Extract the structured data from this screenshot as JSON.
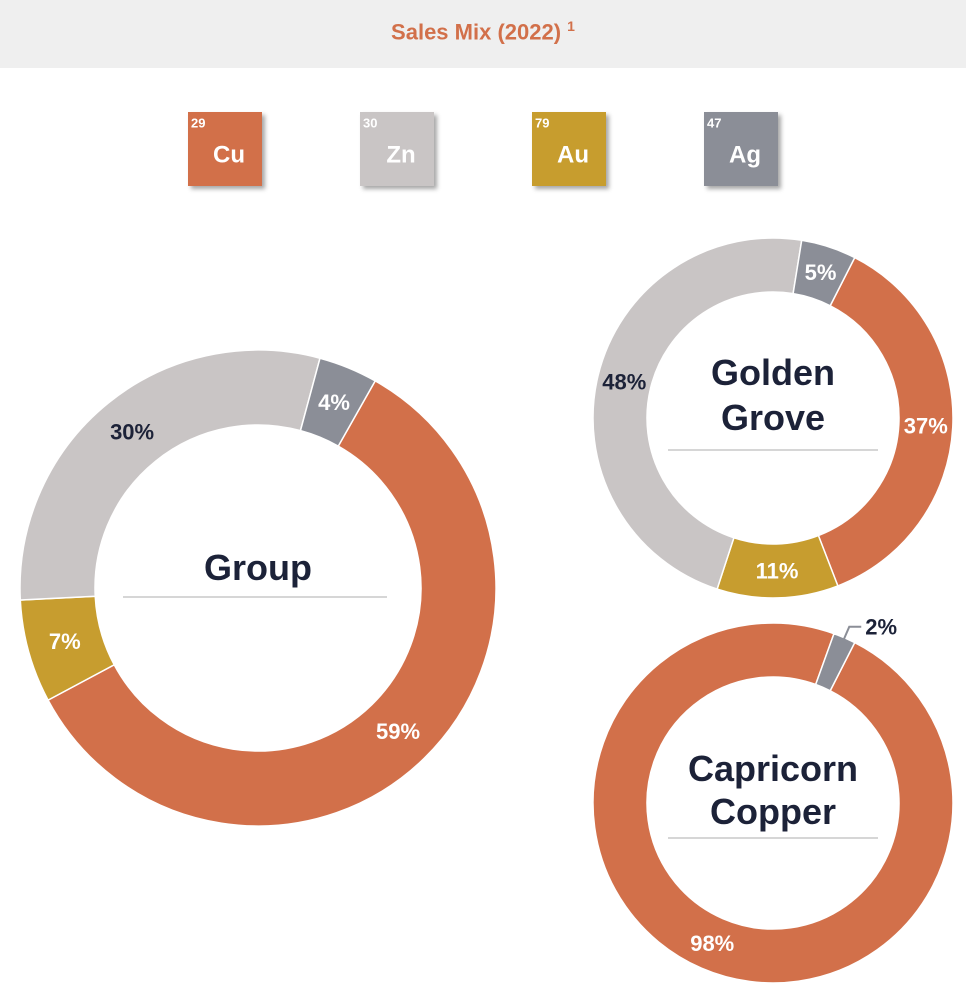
{
  "title": "Sales Mix (2022)",
  "title_note": "1",
  "legend": [
    {
      "symbol": "Cu",
      "number": "29",
      "color": "#d2704a"
    },
    {
      "symbol": "Zn",
      "number": "30",
      "color": "#c9c5c5"
    },
    {
      "symbol": "Au",
      "number": "79",
      "color": "#c79d2f"
    },
    {
      "symbol": "Ag",
      "number": "47",
      "color": "#8b8e97"
    }
  ],
  "chart_data": [
    {
      "type": "pie",
      "donut": true,
      "title": "Group",
      "categories": [
        "Cu",
        "Au",
        "Zn",
        "Ag"
      ],
      "values": [
        59,
        7,
        30,
        4
      ],
      "value_labels": [
        "59%",
        "7%",
        "30%",
        "4%"
      ],
      "colors": [
        "#d2704a",
        "#c79d2f",
        "#c9c5c5",
        "#8b8e97"
      ]
    },
    {
      "type": "pie",
      "donut": true,
      "title": "Golden Grove",
      "categories": [
        "Cu",
        "Au",
        "Zn",
        "Ag"
      ],
      "values": [
        37,
        11,
        48,
        5
      ],
      "value_labels": [
        "37%",
        "11%",
        "48%",
        "5%"
      ],
      "colors": [
        "#d2704a",
        "#c79d2f",
        "#c9c5c5",
        "#8b8e97"
      ]
    },
    {
      "type": "pie",
      "donut": true,
      "title": "Capricorn Copper",
      "categories": [
        "Cu",
        "Ag"
      ],
      "values": [
        98,
        2
      ],
      "value_labels": [
        "98%",
        "2%"
      ],
      "colors": [
        "#d2704a",
        "#8b8e97"
      ]
    }
  ]
}
